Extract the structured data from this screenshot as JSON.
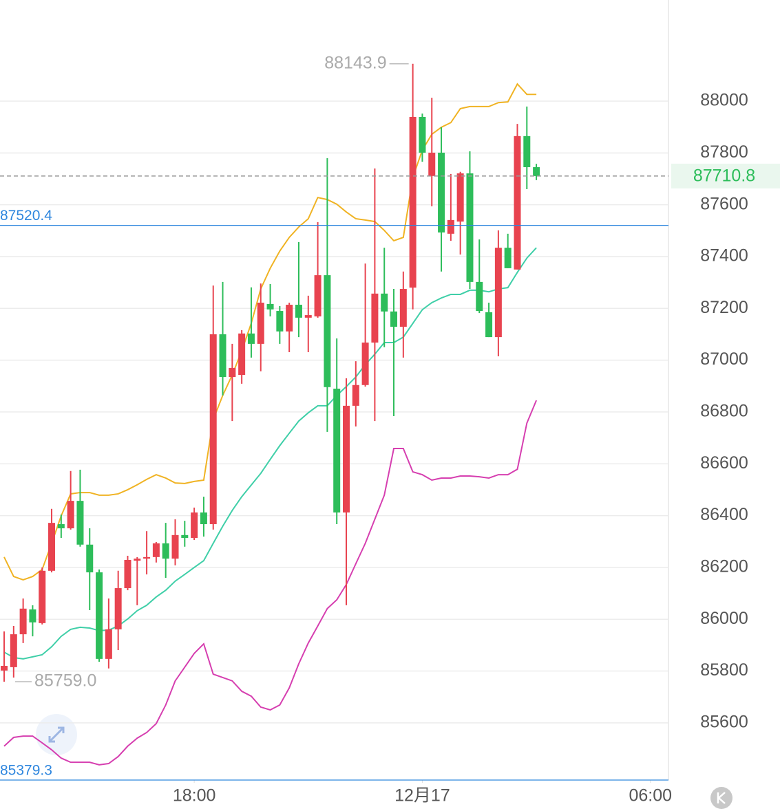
{
  "chart_data": {
    "type": "candlestick",
    "x": [
      0,
      1,
      2,
      3,
      4,
      5,
      6,
      7,
      8,
      9,
      10,
      11,
      12,
      13,
      14,
      15,
      16,
      17,
      18,
      19,
      20,
      21,
      22,
      23,
      24,
      25,
      26,
      27,
      28,
      29,
      30,
      31,
      32,
      33,
      34,
      35,
      36,
      37,
      38,
      39,
      40,
      41,
      42,
      43,
      44,
      45,
      46,
      47,
      48,
      49,
      50,
      51,
      52,
      53,
      54,
      55,
      56
    ],
    "open": [
      85802,
      85815,
      85942,
      86038,
      85985,
      86187,
      86367,
      86351,
      86457,
      86288,
      86181,
      85847,
      85961,
      86120,
      86226,
      86234,
      86240,
      86293,
      86234,
      86325,
      86314,
      86412,
      86367,
      87100,
      86935,
      86943,
      87103,
      87063,
      87217,
      87190,
      87111,
      87214,
      87164,
      87169,
      87328,
      86890,
      86412,
      86824,
      86904,
      87068,
      87257,
      87188,
      87129,
      87280,
      87939,
      87711,
      87801,
      87488,
      87535,
      87721,
      87302,
      87185,
      87089,
      87434,
      87350,
      87865,
      87745
    ],
    "high": [
      85953,
      85974,
      86080,
      86054,
      86200,
      86426,
      86404,
      86572,
      86577,
      86351,
      86192,
      86080,
      86187,
      86245,
      86240,
      86340,
      86298,
      86372,
      86386,
      86380,
      86431,
      86473,
      87288,
      87302,
      87063,
      87116,
      87281,
      87296,
      87294,
      87209,
      87222,
      87456,
      87249,
      87533,
      87780,
      87084,
      86930,
      86996,
      87373,
      87740,
      87434,
      87275,
      87342,
      88143.9,
      87952,
      88013,
      87899,
      87719,
      87727,
      87806,
      87466,
      87222,
      87501,
      87488,
      87912,
      87979,
      87758
    ],
    "low": [
      85759,
      85775,
      85908,
      85934,
      85980,
      86181,
      86314,
      86346,
      86280,
      86035,
      85836,
      85810,
      85881,
      86112,
      86054,
      86173,
      86219,
      86160,
      86208,
      86280,
      86306,
      86319,
      86346,
      86864,
      86765,
      86909,
      87010,
      86957,
      87169,
      87063,
      87031,
      87089,
      87031,
      87164,
      86723,
      86367,
      86054,
      86744,
      86898,
      86765,
      87050,
      86784,
      87010,
      87196,
      87766,
      87594,
      87342,
      87461,
      87408,
      87275,
      87182,
      87089,
      87015,
      87355,
      87350,
      87660,
      87695
    ],
    "close": [
      85820,
      85942,
      86041,
      85988,
      86187,
      86372,
      86351,
      86457,
      86288,
      86181,
      85847,
      85961,
      86120,
      86229,
      86234,
      86240,
      86293,
      86234,
      86325,
      86314,
      86412,
      86367,
      87100,
      86935,
      86970,
      87103,
      87063,
      87222,
      87196,
      87111,
      87214,
      87164,
      87174,
      87328,
      86896,
      86412,
      86824,
      86904,
      87068,
      87257,
      87188,
      87129,
      87275,
      87939,
      87801,
      87801,
      87493,
      87541,
      87721,
      87302,
      87190,
      87089,
      87434,
      87355,
      87865,
      87745,
      87710.8
    ],
    "up_color": "#e8434f",
    "down_color": "#2dbd5a",
    "series": [
      {
        "color": "#f0b323",
        "values": [
          86240,
          86165,
          86152,
          86165,
          86192,
          86293,
          86399,
          86484,
          86489,
          86489,
          86479,
          86479,
          86484,
          86500,
          86519,
          86540,
          86558,
          86545,
          86526,
          86524,
          86532,
          86537,
          86771,
          86864,
          86943,
          87036,
          87142,
          87275,
          87355,
          87421,
          87474,
          87514,
          87546,
          87628,
          87620,
          87602,
          87572,
          87546,
          87541,
          87535,
          87501,
          87461,
          87474,
          87705,
          87811,
          87872,
          87899,
          87917,
          87971,
          87979,
          87979,
          87979,
          87994,
          87997,
          88066,
          88026,
          88026
        ]
      },
      {
        "color": "#3fcfa8",
        "values": [
          85873,
          85852,
          85847,
          85855,
          85863,
          85894,
          85934,
          85961,
          85969,
          85966,
          85956,
          85958,
          85974,
          86001,
          86033,
          86054,
          86086,
          86112,
          86147,
          86173,
          86200,
          86226,
          86293,
          86359,
          86420,
          86473,
          86518,
          86563,
          86617,
          86670,
          86718,
          86765,
          86797,
          86824,
          86824,
          86864,
          86898,
          86935,
          86983,
          87023,
          87068,
          87068,
          87089,
          87142,
          87195,
          87222,
          87240,
          87254,
          87254,
          87270,
          87270,
          87264,
          87275,
          87280,
          87339,
          87394,
          87434
        ]
      },
      {
        "color": "#d63fb0",
        "values": [
          85510,
          85544,
          85549,
          85549,
          85523,
          85496,
          85464,
          85448,
          85448,
          85448,
          85438,
          85443,
          85470,
          85510,
          85541,
          85563,
          85597,
          85669,
          85762,
          85815,
          85868,
          85905,
          85788,
          85775,
          85762,
          85722,
          85703,
          85661,
          85650,
          85669,
          85735,
          85828,
          85908,
          85974,
          86041,
          86075,
          86134,
          86214,
          86293,
          86386,
          86479,
          86659,
          86659,
          86569,
          86558,
          86537,
          86545,
          86545,
          86553,
          86553,
          86550,
          86545,
          86558,
          86558,
          86579,
          86757,
          86845
        ]
      }
    ],
    "xlim": [
      -0.435,
      69.9
    ],
    "xticks": [
      {
        "value": 20,
        "label": "18:00"
      },
      {
        "value": 44,
        "label": "12月17"
      },
      {
        "value": 68,
        "label": "06:00"
      }
    ],
    "ylim": [
      85379.3,
      88390.3
    ],
    "yticks": [
      85600,
      85800,
      86000,
      86200,
      86400,
      86600,
      86800,
      87000,
      87200,
      87400,
      87600,
      87800,
      88000
    ],
    "grid": true,
    "max_label": 88143.9,
    "min_label": {
      "value": 85759,
      "label": "85759.0"
    },
    "last_price": 87710.8,
    "ref_lines": [
      87520.4,
      85379.3
    ]
  }
}
